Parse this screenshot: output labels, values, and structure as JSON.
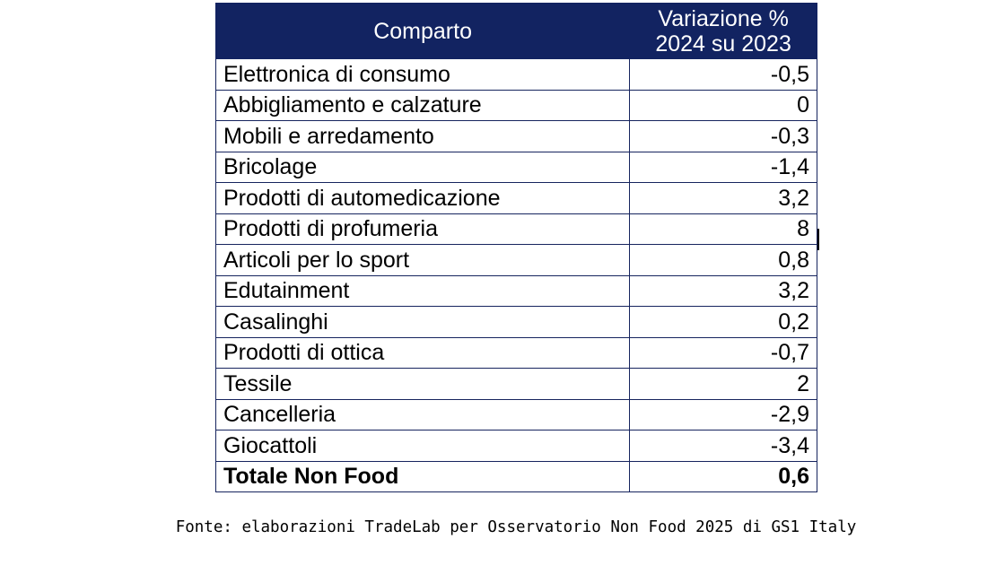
{
  "table": {
    "headers": {
      "comparto": "Comparto",
      "variazione_line1": "Variazione %",
      "variazione_line2": "2024 su 2023"
    },
    "rows": [
      {
        "name": "Elettronica di consumo",
        "value": "-0,5"
      },
      {
        "name": "Abbigliamento e calzature",
        "value": "0"
      },
      {
        "name": "Mobili e arredamento",
        "value": "-0,3"
      },
      {
        "name": "Bricolage",
        "value": "-1,4"
      },
      {
        "name": "Prodotti di automedicazione",
        "value": "3,2"
      },
      {
        "name": "Prodotti di profumeria",
        "value": "8"
      },
      {
        "name": "Articoli per lo sport",
        "value": "0,8"
      },
      {
        "name": "Edutainment",
        "value": "3,2"
      },
      {
        "name": "Casalinghi",
        "value": "0,2"
      },
      {
        "name": "Prodotti di ottica",
        "value": "-0,7"
      },
      {
        "name": "Tessile",
        "value": "2"
      },
      {
        "name": "Cancelleria",
        "value": "-2,9"
      },
      {
        "name": "Giocattoli",
        "value": "-3,4"
      }
    ],
    "total": {
      "name": "Totale Non Food",
      "value": "0,6"
    }
  },
  "source_note": "Fonte: elaborazioni TradeLab per Osservatorio Non Food 2025 di GS1 Italy",
  "colors": {
    "header_background": "#122361",
    "header_text": "#ffffff",
    "border": "#16245e"
  }
}
